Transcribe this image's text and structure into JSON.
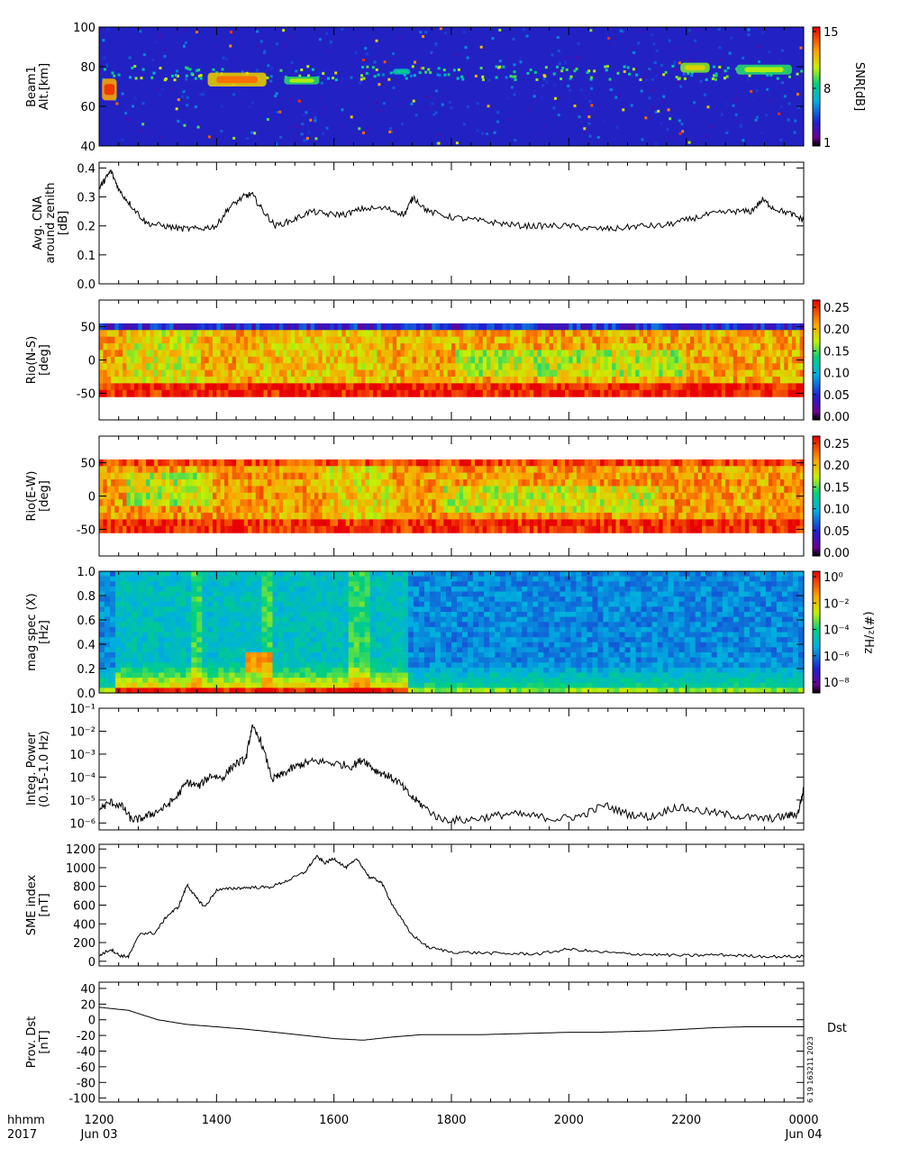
{
  "chart_data": [
    {
      "type": "heatmap",
      "ylabel": [
        "Beam1",
        "Alt.[km]"
      ],
      "yticks": [
        40,
        60,
        80,
        100
      ],
      "ylim": [
        40,
        100
      ],
      "colorbar": {
        "label": "SNR[dB]",
        "ticks": [
          "15",
          "8",
          "1"
        ],
        "range": [
          1,
          15
        ]
      },
      "bands": [
        {
          "x0": 12.05,
          "x1": 12.3,
          "y0": 63,
          "y1": 74,
          "level": 14
        },
        {
          "x0": 13.85,
          "x1": 14.85,
          "y0": 70,
          "y1": 77,
          "level": 13
        },
        {
          "x0": 15.15,
          "x1": 15.75,
          "y0": 71,
          "y1": 75,
          "level": 10
        },
        {
          "x0": 17.0,
          "x1": 17.3,
          "y0": 76,
          "y1": 79,
          "level": 8
        },
        {
          "x0": 21.9,
          "x1": 22.4,
          "y0": 77,
          "y1": 82,
          "level": 11
        },
        {
          "x0": 22.85,
          "x1": 23.8,
          "y0": 76,
          "y1": 81,
          "level": 10
        }
      ]
    },
    {
      "type": "line",
      "ylabel": [
        "Avg. CNA",
        "around zenith",
        "[dB]"
      ],
      "yticks": [
        "0.0",
        "0.1",
        "0.2",
        "0.3",
        "0.4"
      ],
      "ylim": [
        0,
        0.42
      ],
      "x": [
        12.0,
        12.1,
        12.2,
        12.35,
        12.55,
        12.8,
        13.1,
        13.4,
        13.7,
        14.0,
        14.2,
        14.45,
        14.6,
        14.8,
        15.0,
        15.3,
        15.6,
        15.9,
        16.2,
        16.5,
        16.9,
        17.2,
        17.35,
        17.6,
        18.0,
        18.4,
        18.8,
        19.2,
        19.6,
        20.0,
        20.4,
        20.8,
        21.2,
        21.6,
        22.0,
        22.4,
        22.8,
        23.1,
        23.3,
        23.5,
        23.8,
        24.0
      ],
      "y": [
        0.33,
        0.36,
        0.39,
        0.32,
        0.27,
        0.21,
        0.2,
        0.19,
        0.19,
        0.2,
        0.26,
        0.3,
        0.31,
        0.25,
        0.2,
        0.22,
        0.25,
        0.24,
        0.24,
        0.26,
        0.26,
        0.24,
        0.3,
        0.25,
        0.23,
        0.22,
        0.21,
        0.2,
        0.2,
        0.2,
        0.19,
        0.19,
        0.2,
        0.2,
        0.22,
        0.24,
        0.25,
        0.25,
        0.29,
        0.26,
        0.24,
        0.22
      ]
    },
    {
      "type": "heatmap",
      "ylabel": [
        "Rio(N-S)",
        "[deg]"
      ],
      "yticks": [
        -50,
        0,
        50
      ],
      "ylim": [
        -90,
        90
      ],
      "rows_range": [
        -55,
        55
      ],
      "colorbar": {
        "ticks": [
          "0.25",
          "0.20",
          "0.15",
          "0.10",
          "0.05",
          "0.00"
        ],
        "range": [
          0,
          0.28
        ]
      }
    },
    {
      "type": "heatmap",
      "ylabel": [
        "Rio(E-W)",
        "[deg]"
      ],
      "yticks": [
        -50,
        0,
        50
      ],
      "ylim": [
        -90,
        90
      ],
      "rows_range": [
        -55,
        55
      ],
      "colorbar": {
        "ticks": [
          "0.25",
          "0.20",
          "0.15",
          "0.10",
          "0.05",
          "0.00"
        ],
        "range": [
          0,
          0.28
        ]
      }
    },
    {
      "type": "heatmap",
      "ylabel": [
        "mag spec (X)",
        "[Hz]"
      ],
      "yticks": [
        "0.0",
        "0.2",
        "0.4",
        "0.6",
        "0.8",
        "1.0"
      ],
      "ylim": [
        0,
        1.0
      ],
      "colorbar": {
        "label": "(#)²/Hz",
        "ticks": [
          "10⁰",
          "10⁻²",
          "10⁻⁴",
          "10⁻⁶",
          "10⁻⁸"
        ],
        "range": [
          -9,
          1
        ]
      }
    },
    {
      "type": "line",
      "scale": "log",
      "ylabel": [
        "Integ. Power",
        "(0.15-1.0 Hz)"
      ],
      "yticks": [
        "10⁻¹",
        "10⁻²",
        "10⁻³",
        "10⁻⁴",
        "10⁻⁵",
        "10⁻⁶"
      ],
      "ylim": [
        5e-07,
        0.1
      ],
      "x": [
        12.0,
        12.2,
        12.4,
        12.55,
        12.7,
        12.9,
        13.1,
        13.3,
        13.5,
        13.7,
        13.9,
        14.1,
        14.3,
        14.5,
        14.6,
        14.75,
        14.95,
        15.1,
        15.3,
        15.5,
        15.7,
        16.0,
        16.3,
        16.5,
        16.7,
        16.9,
        17.1,
        17.3,
        17.5,
        17.8,
        18.2,
        18.6,
        19.0,
        19.4,
        19.8,
        20.2,
        20.6,
        21.0,
        21.4,
        21.8,
        22.2,
        22.6,
        23.0,
        23.4,
        23.7,
        23.9,
        24.0
      ],
      "y": [
        4e-06,
        8e-06,
        5e-06,
        1.4e-06,
        1.5e-06,
        2.5e-06,
        4.5e-06,
        1.2e-05,
        6e-05,
        4e-05,
        0.00012,
        9e-05,
        0.00035,
        0.0006,
        0.015,
        0.004,
        8e-05,
        0.00012,
        0.00025,
        0.0004,
        0.0005,
        0.0004,
        0.0003,
        0.0006,
        0.0002,
        0.00012,
        6e-05,
        1.5e-05,
        6e-06,
        1.5e-06,
        1.3e-06,
        1.8e-06,
        2.5e-06,
        2e-06,
        1.5e-06,
        2e-06,
        6e-06,
        2.5e-06,
        1.8e-06,
        5e-06,
        3.5e-06,
        2.5e-06,
        1.8e-06,
        1.5e-06,
        2e-06,
        2.5e-06,
        3e-05
      ]
    },
    {
      "type": "line",
      "ylabel": [
        "SME index",
        "[nT]"
      ],
      "yticks": [
        0,
        200,
        400,
        600,
        800,
        1000,
        1200
      ],
      "ylim": [
        -50,
        1250
      ],
      "x": [
        12.0,
        12.2,
        12.35,
        12.5,
        12.7,
        12.95,
        13.15,
        13.35,
        13.5,
        13.65,
        13.8,
        14.0,
        14.3,
        14.6,
        14.9,
        15.2,
        15.5,
        15.7,
        15.85,
        16.0,
        16.2,
        16.4,
        16.6,
        16.8,
        17.0,
        17.3,
        17.6,
        18.0,
        18.5,
        19.0,
        19.5,
        20.0,
        20.5,
        21.0,
        21.5,
        22.0,
        22.5,
        23.0,
        23.5,
        24.0
      ],
      "y": [
        60,
        130,
        60,
        50,
        300,
        300,
        480,
        580,
        820,
        680,
        580,
        760,
        780,
        790,
        790,
        860,
        950,
        1120,
        1050,
        1100,
        1000,
        1090,
        900,
        850,
        600,
        300,
        150,
        100,
        90,
        80,
        80,
        130,
        100,
        80,
        70,
        60,
        70,
        60,
        50,
        50
      ]
    },
    {
      "type": "line",
      "ylabel": [
        "Prov. Dst",
        "[nT]"
      ],
      "yticks": [
        40,
        20,
        0,
        -20,
        -40,
        -60,
        -80,
        -100
      ],
      "ylim": [
        -105,
        48
      ],
      "series_label": "Dst",
      "x": [
        12.0,
        12.5,
        13.0,
        13.5,
        14.0,
        14.5,
        15.0,
        15.5,
        16.0,
        16.5,
        17.0,
        17.5,
        18.0,
        18.5,
        19.0,
        19.5,
        20.0,
        20.5,
        21.0,
        21.5,
        22.0,
        22.5,
        23.0,
        23.5,
        24.0
      ],
      "y": [
        16,
        12,
        0,
        -6,
        -9,
        -12,
        -16,
        -20,
        -24,
        -26,
        -22,
        -19,
        -19,
        -19,
        -18,
        -17,
        -16,
        -16,
        -15,
        -14,
        -12,
        -10,
        -9,
        -9,
        -9
      ]
    }
  ],
  "x_axis": {
    "row_label": "hhmm",
    "row_label2": "2017",
    "ticks": [
      {
        "label": "1200",
        "sub": "Jun 03",
        "hour": 12
      },
      {
        "label": "1400",
        "sub": "",
        "hour": 14
      },
      {
        "label": "1600",
        "sub": "",
        "hour": 16
      },
      {
        "label": "1800",
        "sub": "",
        "hour": 18
      },
      {
        "label": "2000",
        "sub": "",
        "hour": 20
      },
      {
        "label": "2200",
        "sub": "",
        "hour": 22
      },
      {
        "label": "0000",
        "sub": "Jun 04",
        "hour": 24
      }
    ]
  },
  "stamp": "6 19 163211 2023",
  "colors": {
    "trace": "#000000",
    "axis": "#000000"
  }
}
